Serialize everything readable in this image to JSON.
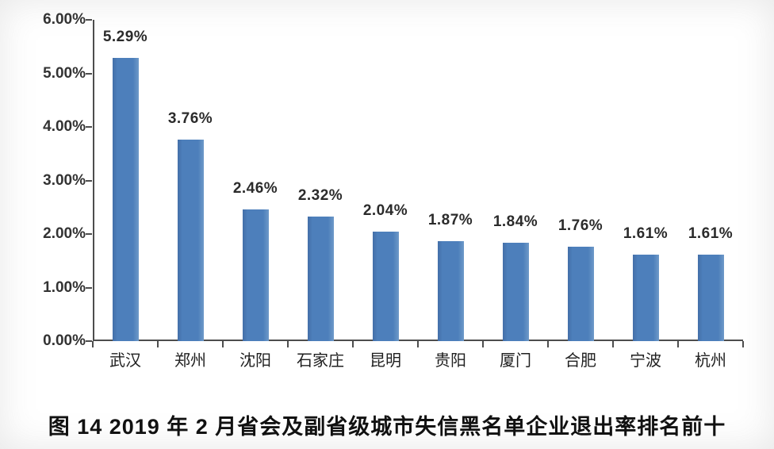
{
  "chart_data": {
    "type": "bar",
    "categories": [
      "武汉",
      "郑州",
      "沈阳",
      "石家庄",
      "昆明",
      "贵阳",
      "厦门",
      "合肥",
      "宁波",
      "杭州"
    ],
    "values": [
      5.29,
      3.76,
      2.46,
      2.32,
      2.04,
      1.87,
      1.84,
      1.76,
      1.61,
      1.61
    ],
    "value_labels": [
      "5.29%",
      "3.76%",
      "2.46%",
      "2.32%",
      "2.04%",
      "1.87%",
      "1.84%",
      "1.76%",
      "1.61%",
      "1.61%"
    ],
    "title": "图 14  2019 年 2 月省会及副省级城市失信黑名单企业退出率排名前十",
    "xlabel": "",
    "ylabel": "",
    "ylim": [
      0,
      6
    ],
    "y_ticks": [
      "0.00%",
      "1.00%",
      "2.00%",
      "3.00%",
      "4.00%",
      "5.00%",
      "6.00%"
    ],
    "grid": false,
    "legend": "none"
  },
  "caption": "图 14  2019 年 2 月省会及副省级城市失信黑名单企业退出率排名前十",
  "colors": {
    "bar": "#4d7fbb",
    "axis": "#4d4d4d",
    "text": "#2b2b2b",
    "background": "#ffffff"
  }
}
